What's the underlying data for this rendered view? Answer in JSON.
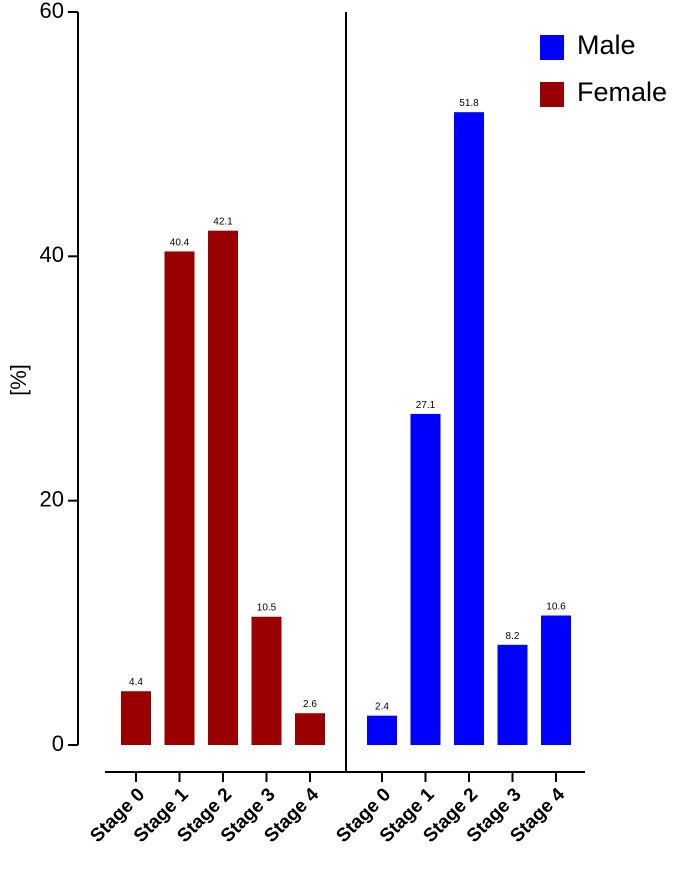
{
  "chart_data": {
    "type": "bar",
    "y_label": "[%]",
    "categories": [
      "Stage 0",
      "Stage 1",
      "Stage 2",
      "Stage 3",
      "Stage 4"
    ],
    "series": [
      {
        "name": "Male",
        "color": "#0000ff",
        "values": [
          2.4,
          27.1,
          51.8,
          8.2,
          10.6
        ]
      },
      {
        "name": "Female",
        "color": "#990000",
        "values": [
          4.4,
          40.4,
          42.1,
          10.5,
          2.6
        ]
      }
    ],
    "ylim": [
      0,
      60
    ],
    "yticks": [
      0,
      20,
      40,
      60
    ],
    "legend": "top-right"
  }
}
